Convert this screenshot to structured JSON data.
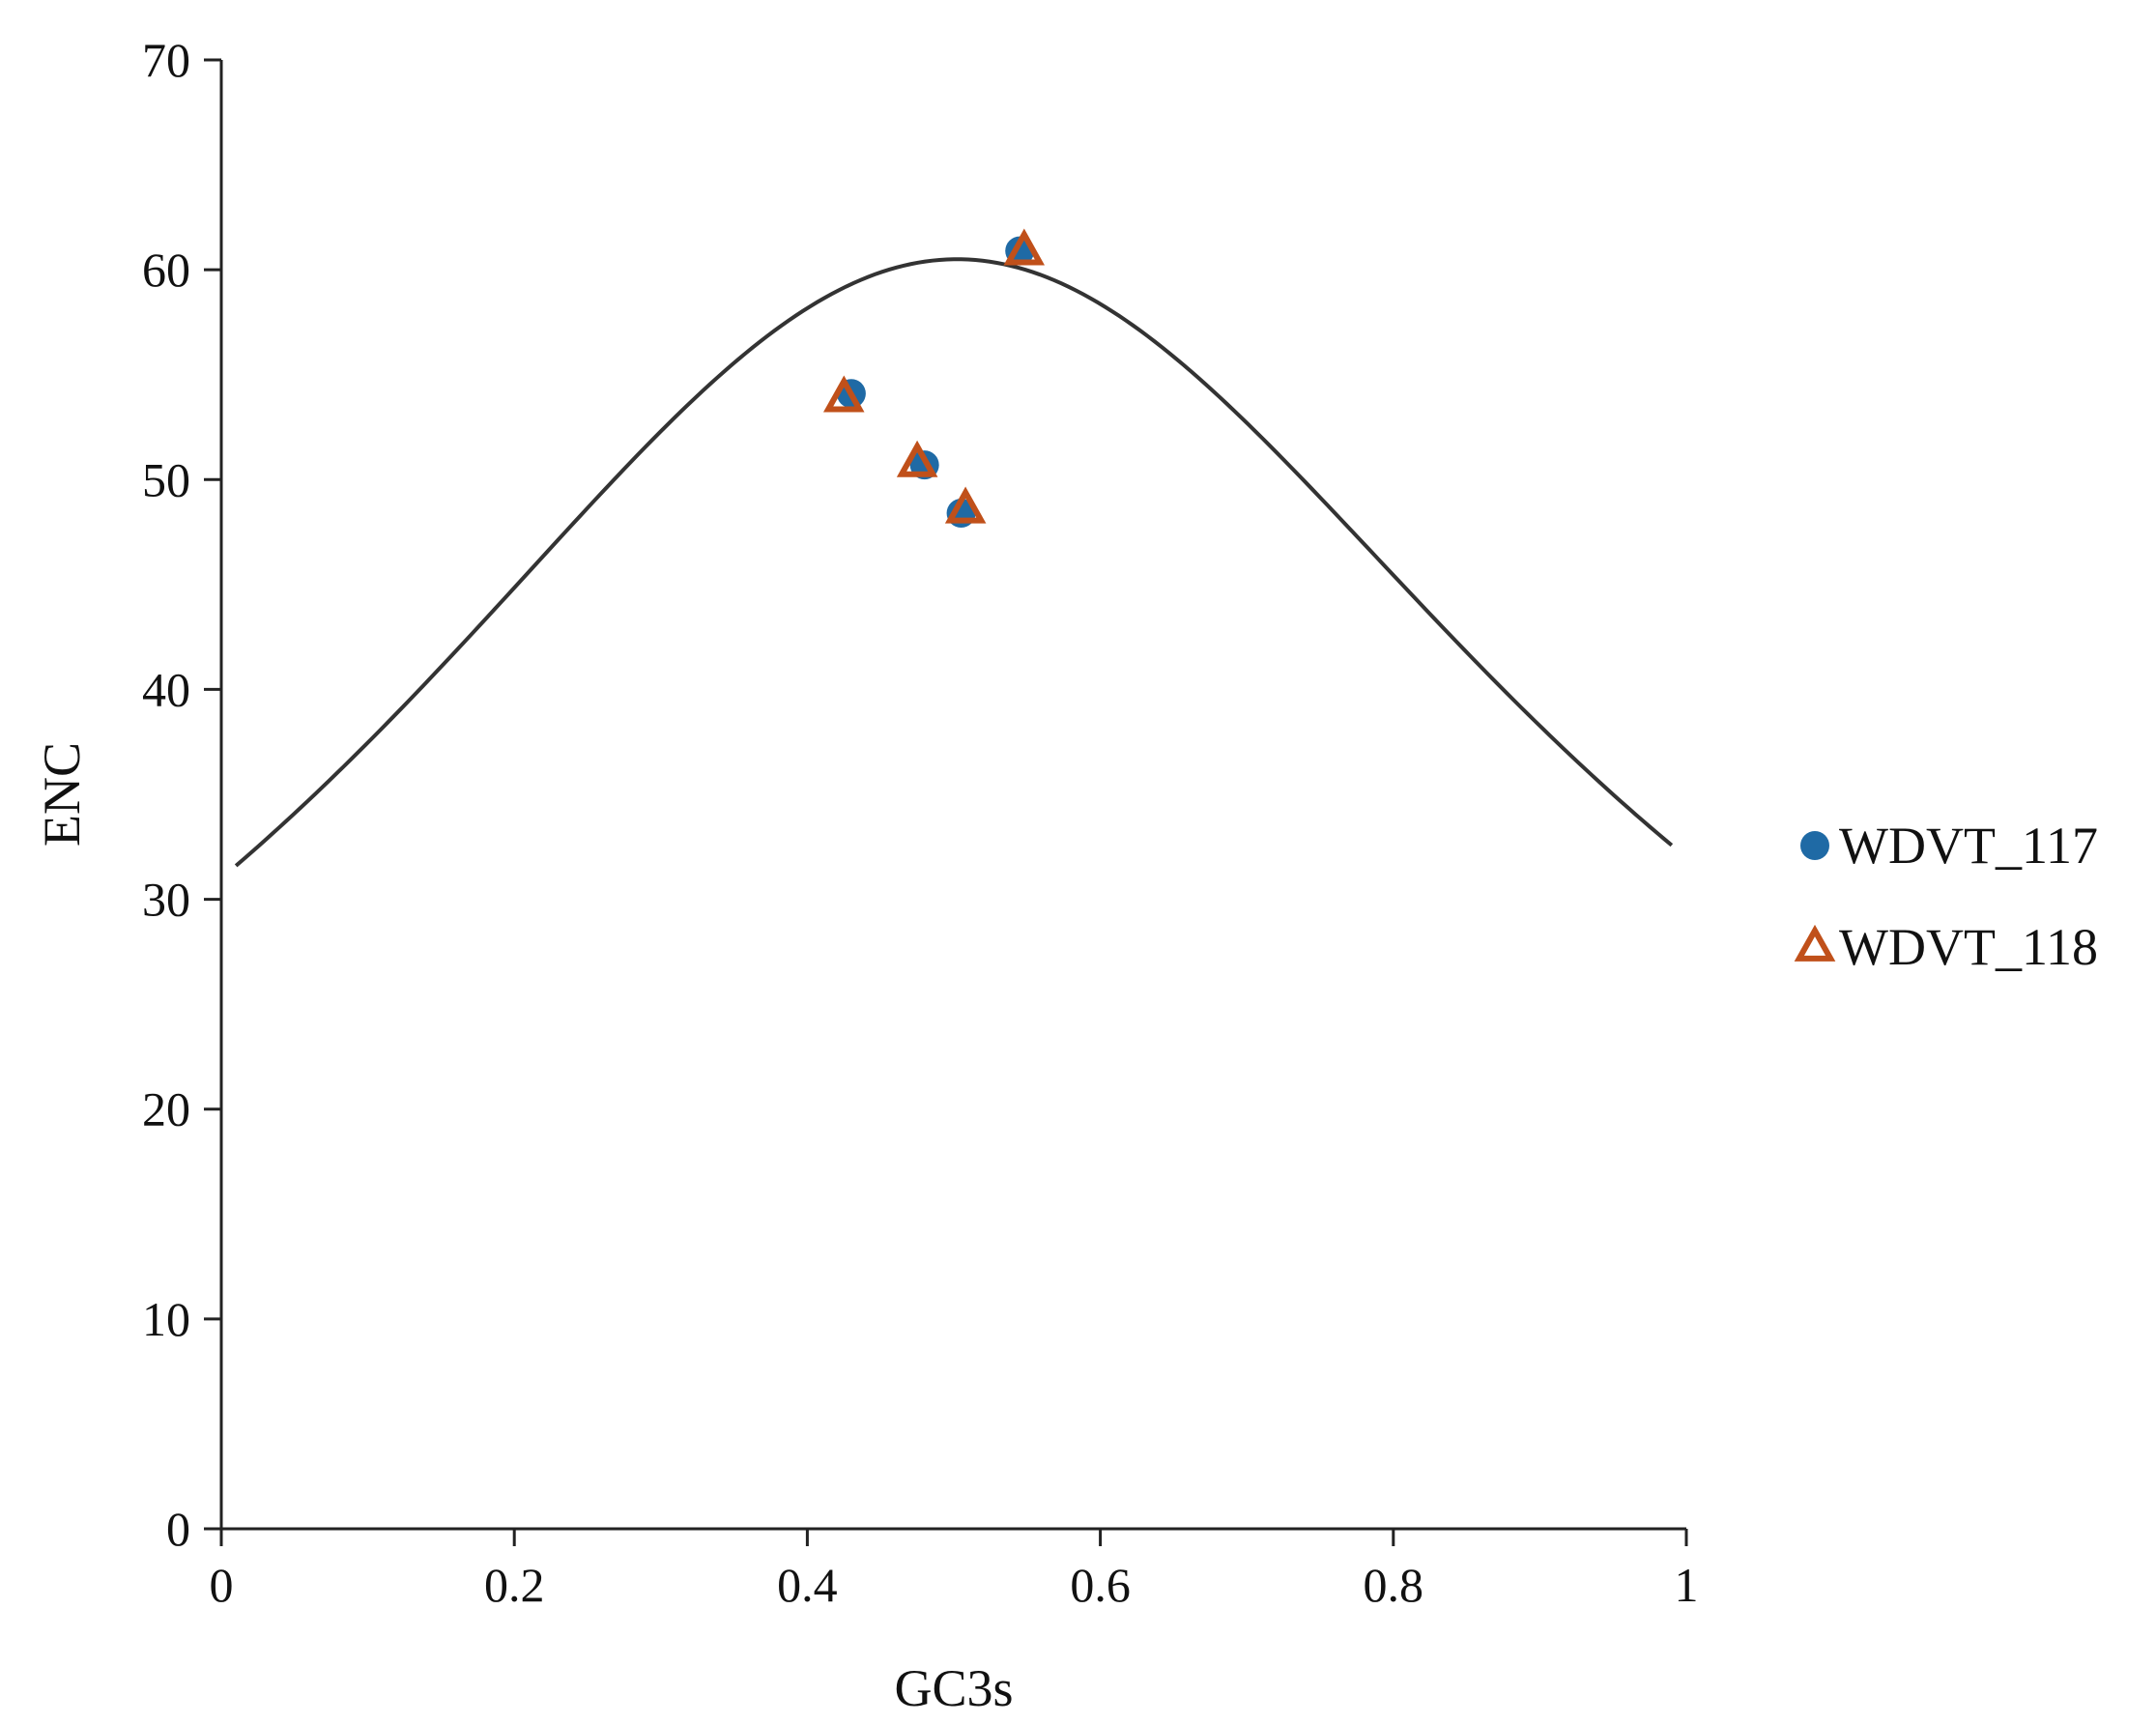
{
  "chart_data": {
    "type": "scatter",
    "title": "",
    "xlabel": "GC3s",
    "ylabel": "ENC",
    "xlim": [
      0,
      1
    ],
    "ylim": [
      0,
      70
    ],
    "x_ticks": [
      "0",
      "0.2",
      "0.4",
      "0.6",
      "0.8",
      "1"
    ],
    "y_ticks": [
      "0",
      "10",
      "20",
      "30",
      "40",
      "50",
      "60",
      "70"
    ],
    "grid": false,
    "legend_position": "right",
    "expected_curve": {
      "formula": "ENC = 2 + s + 29 / (s^2 + (1 - s)^2)",
      "x_range": [
        0.01,
        0.99
      ],
      "color": "#333333"
    },
    "series": [
      {
        "name": "WDVT_117",
        "marker": "circle",
        "color": "#1f6aa5",
        "points": [
          {
            "x": 0.43,
            "y": 54.1
          },
          {
            "x": 0.48,
            "y": 50.7
          },
          {
            "x": 0.505,
            "y": 48.4
          },
          {
            "x": 0.545,
            "y": 60.9
          }
        ]
      },
      {
        "name": "WDVT_118",
        "marker": "triangle",
        "color": "#c0501a",
        "points": [
          {
            "x": 0.425,
            "y": 53.9
          },
          {
            "x": 0.475,
            "y": 50.8
          },
          {
            "x": 0.508,
            "y": 48.6
          },
          {
            "x": 0.548,
            "y": 60.9
          }
        ]
      }
    ]
  }
}
